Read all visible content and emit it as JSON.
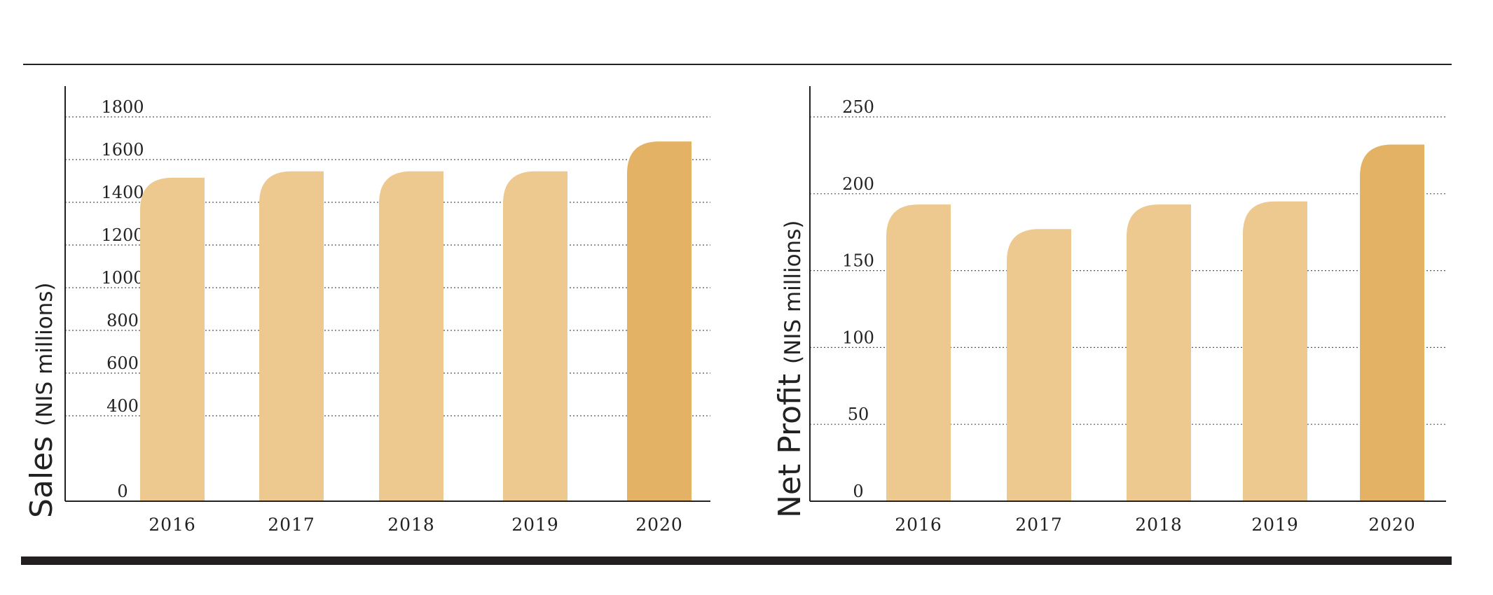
{
  "colors": {
    "bar": "#EDC88F",
    "bar_highlight": "#E4B264",
    "axis": "#222222",
    "grid": "#555555"
  },
  "chart_data": [
    {
      "type": "bar",
      "categories": [
        "2016",
        "2017",
        "2018",
        "2019",
        "2020"
      ],
      "values": [
        1515,
        1545,
        1545,
        1545,
        1685
      ],
      "highlight_index": 4,
      "yticks": [
        0,
        400,
        600,
        800,
        1000,
        1200,
        1400,
        1600,
        1800
      ],
      "ylim": [
        0,
        1800
      ],
      "ylabel_main": "Sales",
      "ylabel_sub": "(NIS millions)",
      "grid": true
    },
    {
      "type": "bar",
      "categories": [
        "2016",
        "2017",
        "2018",
        "2019",
        "2020"
      ],
      "values": [
        193,
        177,
        193,
        195,
        232
      ],
      "highlight_index": 4,
      "yticks": [
        0,
        50,
        100,
        150,
        200,
        250
      ],
      "ylim": [
        0,
        250
      ],
      "ylabel_main": "Net Profit",
      "ylabel_sub": "(NIS millions)",
      "grid": true
    }
  ]
}
